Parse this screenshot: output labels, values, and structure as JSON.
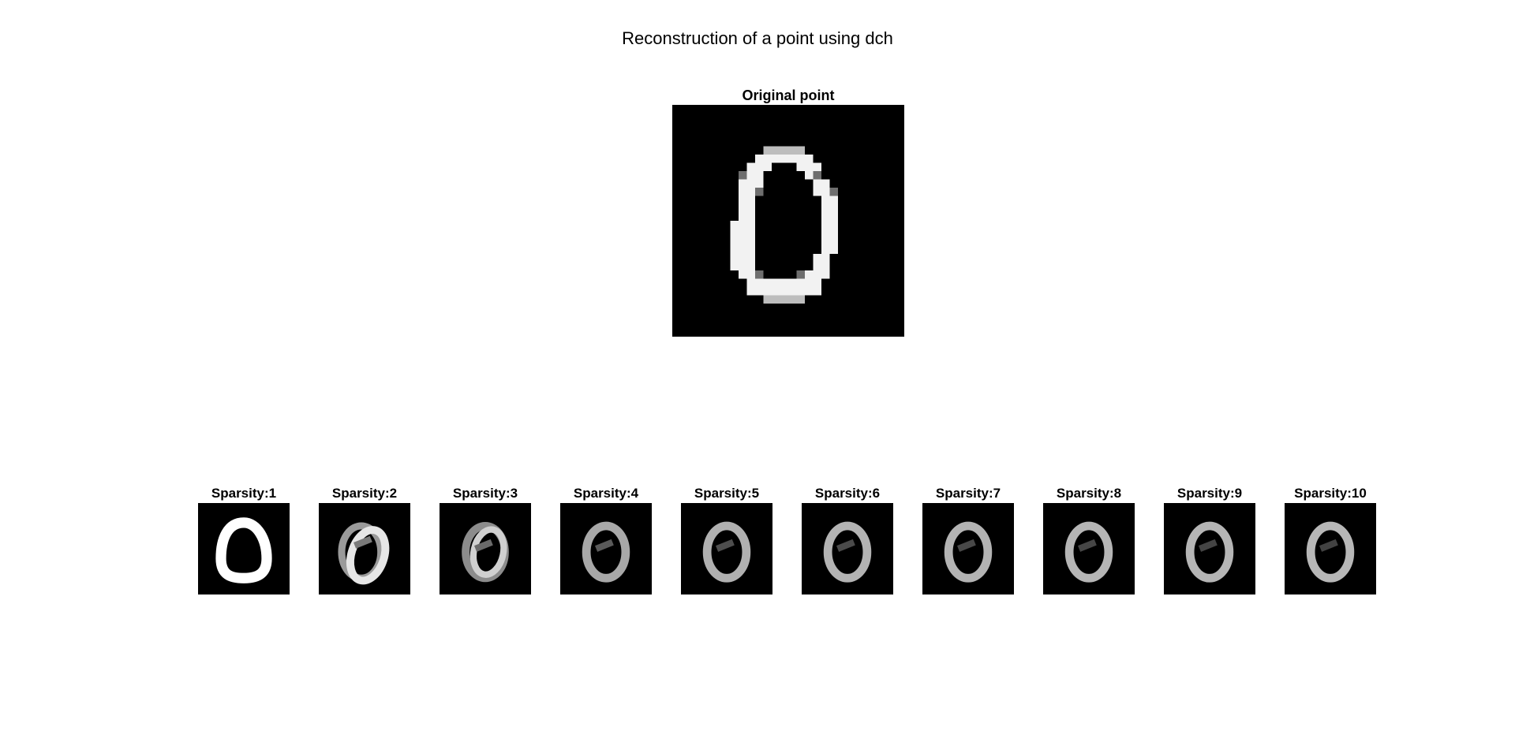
{
  "figure": {
    "title": "Reconstruction of a point using dch"
  },
  "original": {
    "title": "Original point"
  },
  "reconstructions": [
    {
      "title": "Sparsity:1"
    },
    {
      "title": "Sparsity:2"
    },
    {
      "title": "Sparsity:3"
    },
    {
      "title": "Sparsity:4"
    },
    {
      "title": "Sparsity:5"
    },
    {
      "title": "Sparsity:6"
    },
    {
      "title": "Sparsity:7"
    },
    {
      "title": "Sparsity:8"
    },
    {
      "title": "Sparsity:9"
    },
    {
      "title": "Sparsity:10"
    }
  ],
  "colors": {
    "background": "#ffffff",
    "image_bg": "#000000",
    "stroke_bright": "#f2f2f2"
  }
}
